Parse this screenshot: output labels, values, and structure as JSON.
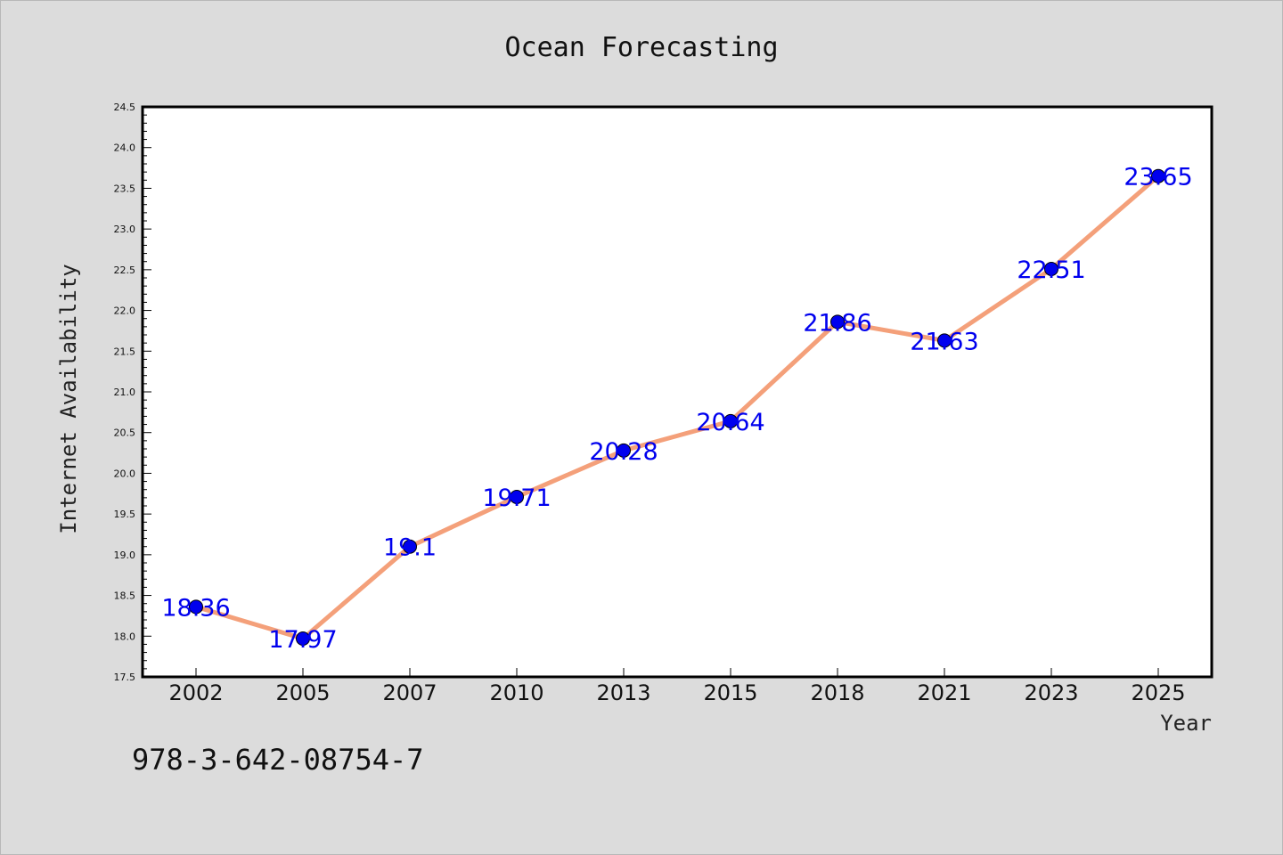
{
  "footer_text": "978-3-642-08754-7",
  "colors": {
    "background": "#dcdcdc",
    "plot_bg": "#ffffff",
    "line": "#f4a07a",
    "marker": "#0000ee",
    "label": "#0000ee"
  },
  "chart_data": {
    "type": "line",
    "title": "Ocean Forecasting",
    "xlabel": "Year",
    "ylabel": "Internet Availability",
    "categories": [
      "2002",
      "2005",
      "2007",
      "2010",
      "2013",
      "2015",
      "2018",
      "2021",
      "2023",
      "2025"
    ],
    "series": [
      {
        "values": [
          18.36,
          17.97,
          19.1,
          19.71,
          20.28,
          20.64,
          21.86,
          21.63,
          22.51,
          23.65
        ]
      }
    ],
    "data_labels": [
      "18.36",
      "17.97",
      "19.1",
      "19.71",
      "20.28",
      "20.64",
      "21.86",
      "21.63",
      "22.51",
      "23.65"
    ],
    "ylim": [
      17.5,
      24.5
    ],
    "yticks": [
      "17.5",
      "18.0",
      "18.5",
      "19.0",
      "19.5",
      "20.0",
      "20.5",
      "21.0",
      "21.5",
      "22.0",
      "22.5",
      "23.0",
      "23.5",
      "24.0",
      "24.5"
    ],
    "grid": false,
    "legend": "none"
  }
}
